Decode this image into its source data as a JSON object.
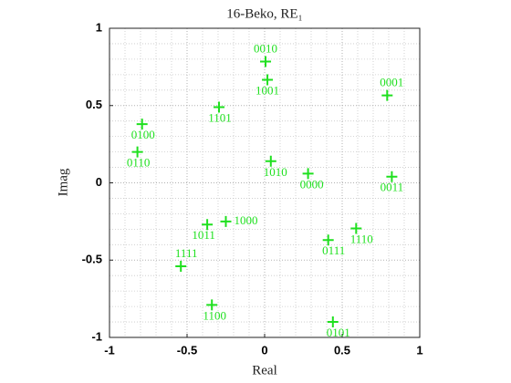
{
  "chart_data": {
    "type": "scatter",
    "title": "16-Beko, RE₁",
    "xlabel": "Real",
    "ylabel": "Imag",
    "x": [
      0.006,
      0.018,
      0.79,
      -0.294,
      -0.79,
      -0.82,
      0.04,
      0.28,
      0.82,
      -0.25,
      -0.37,
      0.59,
      0.41,
      -0.54,
      -0.34,
      0.44
    ],
    "values": [
      0.785,
      0.667,
      0.566,
      0.49,
      0.38,
      0.2,
      0.14,
      0.06,
      0.04,
      -0.25,
      -0.27,
      -0.295,
      -0.37,
      -0.54,
      -0.79,
      -0.9
    ],
    "point_labels": [
      "0010",
      "1001",
      "0001",
      "1101",
      "0100",
      "0110",
      "1010",
      "0000",
      "0011",
      "1000",
      "1011",
      "1110",
      "0111",
      "1111",
      "1100",
      "0101"
    ],
    "color": "#1fe01f",
    "xlim": [
      -1,
      1
    ],
    "ylim": [
      -1,
      1
    ],
    "xticks": [
      -1,
      -0.5,
      0,
      0.5,
      1
    ],
    "yticks": [
      -1,
      -0.5,
      0,
      0.5,
      1
    ],
    "grid": true,
    "minor_grid": true
  }
}
